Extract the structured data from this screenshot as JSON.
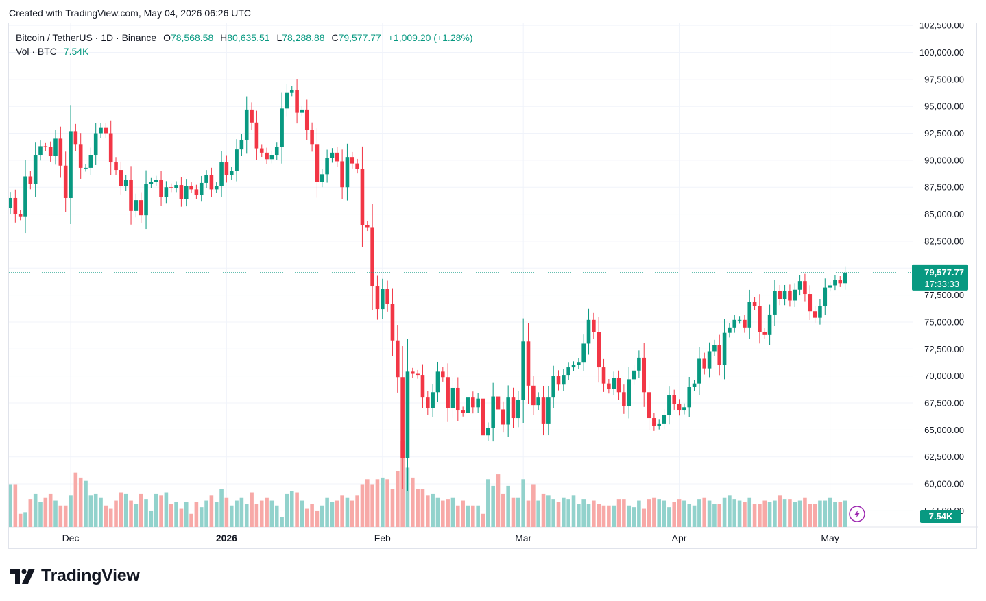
{
  "header": {
    "created_text": "Created with TradingView.com, May 04, 2026 06:26 UTC"
  },
  "legend": {
    "symbol": "Bitcoin / TetherUS · 1D · Binance",
    "open_label": "O",
    "open": "78,568.58",
    "high_label": "H",
    "high": "80,635.51",
    "low_label": "L",
    "low": "78,288.88",
    "close_label": "C",
    "close": "79,577.77",
    "change": "+1,009.20 (+1.28%)",
    "volume_label": "Vol · BTC",
    "volume": "7.54K"
  },
  "price_tag": {
    "price": "79,577.77",
    "countdown": "17:33:33"
  },
  "volume_tag": "7.54K",
  "brand": {
    "name": "TradingView"
  },
  "colors": {
    "up": "#089981",
    "down": "#f23645",
    "up_vol": "#92d2cc",
    "down_vol": "#f7a9a7",
    "grid": "#f0f3fa"
  },
  "chart_data": {
    "type": "candlestick",
    "symbol": "Bitcoin / TetherUS",
    "interval": "1D",
    "exchange": "Binance",
    "y_ticks": [
      "57,500.00",
      "60,000.00",
      "62,500.00",
      "65,000.00",
      "67,500.00",
      "70,000.00",
      "72,500.00",
      "75,000.00",
      "77,500.00",
      "80,000.00",
      "82,500.00",
      "85,000.00",
      "87,500.00",
      "90,000.00",
      "92,500.00",
      "95,000.00",
      "97,500.00",
      "100,000.00",
      "102,500.00"
    ],
    "x_ticks": [
      {
        "label": "Dec",
        "index": 12
      },
      {
        "label": "2026",
        "index": 43,
        "bold": true
      },
      {
        "label": "Feb",
        "index": 74
      },
      {
        "label": "Mar",
        "index": 102
      },
      {
        "label": "Apr",
        "index": 133
      },
      {
        "label": "May",
        "index": 163
      }
    ],
    "y_range": [
      56000,
      102700
    ],
    "last_price": 79577.77,
    "grid": true,
    "closes": [
      86500,
      85000,
      84800,
      88500,
      87800,
      90500,
      91300,
      91200,
      90400,
      92000,
      89500,
      86500,
      92700,
      91500,
      89300,
      89300,
      90500,
      92500,
      93000,
      92500,
      89800,
      89100,
      87600,
      88200,
      85300,
      86300,
      84900,
      87800,
      88000,
      88200,
      86600,
      87500,
      87400,
      87700,
      86400,
      87600,
      87300,
      86800,
      87900,
      88600,
      87300,
      87600,
      89800,
      88600,
      89000,
      91000,
      91900,
      94700,
      93500,
      91100,
      90700,
      90100,
      90500,
      91200,
      94800,
      96300,
      96500,
      94400,
      94700,
      92800,
      91500,
      88000,
      88700,
      90200,
      90700,
      89900,
      87500,
      90300,
      89700,
      89200,
      84000,
      83800,
      78300,
      76200,
      78100,
      76700,
      73300,
      69900,
      62400,
      70400,
      70200,
      70100,
      68000,
      67000,
      68500,
      70400,
      69900,
      67000,
      68900,
      66800,
      66600,
      68000,
      67100,
      67900,
      64500,
      65200,
      68100,
      66900,
      65500,
      68000,
      66100,
      67800,
      73200,
      69100,
      67300,
      68000,
      65600,
      68000,
      70000,
      69200,
      70100,
      70800,
      71000,
      71300,
      73000,
      75200,
      74100,
      70800,
      69300,
      68800,
      69800,
      68500,
      67200,
      69700,
      70500,
      71700,
      68500,
      66100,
      65400,
      65600,
      66400,
      68200,
      67400,
      66800,
      67100,
      69000,
      69300,
      71600,
      70700,
      72300,
      72900,
      71000,
      74000,
      74500,
      75200,
      75200,
      74500,
      76900,
      76500,
      74100,
      73800,
      75700,
      77900,
      77100,
      77900,
      77000,
      78000,
      78800,
      77600,
      76000,
      75400,
      76500,
      78200,
      78400,
      78900,
      78600,
      79578
    ],
    "volumes": [
      2.6,
      2.6,
      0.8,
      0.9,
      1.7,
      2.0,
      1.5,
      1.8,
      2.0,
      1.6,
      1.3,
      1.3,
      1.9,
      3.3,
      3.0,
      2.8,
      1.9,
      2.0,
      1.8,
      1.3,
      1.1,
      1.6,
      2.1,
      2.0,
      1.6,
      1.4,
      2.0,
      1.7,
      1.0,
      2.0,
      1.9,
      2.1,
      1.4,
      1.5,
      1.1,
      1.5,
      0.8,
      1.5,
      1.2,
      1.6,
      1.9,
      1.5,
      2.3,
      1.8,
      1.3,
      1.6,
      1.8,
      1.4,
      2.1,
      1.4,
      1.6,
      1.8,
      1.6,
      1.3,
      0.6,
      2.0,
      2.2,
      2.1,
      1.6,
      1.1,
      1.4,
      1.0,
      1.3,
      1.8,
      1.5,
      1.6,
      1.9,
      1.8,
      1.6,
      1.9,
      2.6,
      2.9,
      2.6,
      2.9,
      3.0,
      2.9,
      2.3,
      3.4,
      5.2,
      3.6,
      3.0,
      2.3,
      2.3,
      1.9,
      2.0,
      1.8,
      1.6,
      1.7,
      1.8,
      1.3,
      1.6,
      1.3,
      1.3,
      1.3,
      0.8,
      2.9,
      2.5,
      3.2,
      2.0,
      2.5,
      1.8,
      1.8,
      2.9,
      1.6,
      2.6,
      1.6,
      2.0,
      1.9,
      1.7,
      1.5,
      1.8,
      1.7,
      1.9,
      1.4,
      1.7,
      1.4,
      1.6,
      1.4,
      1.3,
      1.3,
      1.3,
      1.7,
      1.7,
      1.3,
      1.2,
      1.6,
      1.1,
      1.7,
      1.8,
      1.7,
      1.6,
      1.2,
      1.5,
      1.7,
      1.6,
      1.4,
      1.3,
      1.7,
      1.8,
      1.6,
      1.4,
      1.4,
      1.8,
      1.9,
      1.7,
      1.6,
      1.5,
      1.8,
      1.4,
      1.4,
      1.6,
      1.5,
      1.6,
      1.9,
      1.7,
      1.7,
      1.5,
      1.6,
      1.8,
      1.4,
      1.4,
      1.6,
      1.6,
      1.8,
      1.5,
      1.5,
      1.6,
      1.8,
      0.3
    ],
    "volume_ticks_note": "",
    "last_volume": "7.54K"
  }
}
